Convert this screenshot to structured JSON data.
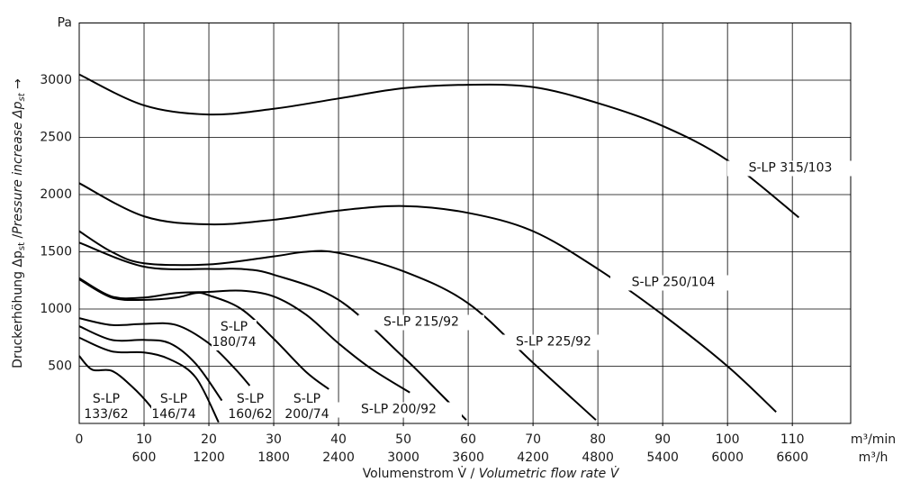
{
  "chart_data": {
    "type": "line",
    "ylabel": [
      "Druckerhöhung Δp",
      "st",
      " /",
      "Pressure increase Δp",
      "st",
      " →"
    ],
    "xlabel": [
      "Volumenstrom V̇ / ",
      "Volumetric flow rate V̇"
    ],
    "x_unit": "m³/min",
    "x2_unit": "m³/h",
    "xlim": [
      0,
      119
    ],
    "xticks": [
      0,
      10,
      20,
      30,
      40,
      50,
      60,
      70,
      80,
      90,
      100,
      110
    ],
    "x2lim": [
      0,
      7140
    ],
    "x2ticks": [
      600,
      1200,
      1800,
      2400,
      3000,
      3600,
      4200,
      4800,
      5400,
      6000,
      6600
    ],
    "ylim": [
      0,
      3500
    ],
    "yticks": [
      500,
      1000,
      1500,
      2000,
      2500,
      3000,
      {
        "value": 3500,
        "label": "Pa"
      }
    ],
    "grid": true,
    "color": "#000000",
    "series": [
      {
        "name": "S-LP 315/103",
        "x": [
          0,
          10,
          20,
          30,
          40,
          50,
          60,
          70,
          80,
          90,
          100,
          111
        ],
        "values": [
          3050,
          2780,
          2700,
          2750,
          2840,
          2930,
          2960,
          2940,
          2800,
          2600,
          2300,
          1800
        ]
      },
      {
        "name": "S-LP 250/104",
        "x": [
          0,
          10,
          20,
          30,
          40,
          50,
          60,
          70,
          80,
          90,
          100,
          107.5
        ],
        "values": [
          2100,
          1810,
          1740,
          1780,
          1860,
          1900,
          1840,
          1680,
          1350,
          950,
          500,
          100
        ]
      },
      {
        "name": "S-LP 225/92",
        "x": [
          0,
          5,
          10,
          20,
          30,
          35,
          40,
          50,
          60,
          70,
          79.7
        ],
        "values": [
          1680,
          1500,
          1400,
          1390,
          1460,
          1500,
          1490,
          1330,
          1050,
          530,
          30
        ]
      },
      {
        "name": "S-LP 215/92",
        "x": [
          0,
          10,
          20,
          25,
          30,
          40,
          50,
          55,
          59.7
        ],
        "values": [
          1580,
          1370,
          1350,
          1350,
          1300,
          1080,
          580,
          300,
          30
        ]
      },
      {
        "name": "S-LP 200/92",
        "x": [
          0,
          5,
          10,
          15,
          20,
          25,
          30,
          35,
          40,
          45,
          51
        ],
        "values": [
          1270,
          1110,
          1100,
          1140,
          1150,
          1160,
          1110,
          950,
          700,
          480,
          270
        ]
      },
      {
        "name": "S-LP 200/74",
        "x": [
          0,
          5,
          10,
          15,
          18,
          20,
          25,
          30,
          35,
          38.5
        ],
        "values": [
          1260,
          1100,
          1080,
          1100,
          1140,
          1120,
          1000,
          740,
          450,
          300
        ]
      },
      {
        "name": "S-LP 180/74",
        "x": [
          0,
          5,
          10,
          15,
          20,
          24,
          26.3
        ],
        "values": [
          920,
          860,
          870,
          860,
          700,
          480,
          330
        ]
      },
      {
        "name": "S-LP 160/62",
        "x": [
          0,
          5,
          10,
          14,
          18,
          22
        ],
        "values": [
          850,
          730,
          730,
          700,
          520,
          200
        ]
      },
      {
        "name": "S-LP 146/74",
        "x": [
          0,
          5,
          10,
          14,
          18,
          21.5
        ],
        "values": [
          750,
          630,
          620,
          560,
          400,
          10
        ]
      },
      {
        "name": "S-LP 133/62",
        "x": [
          0,
          2,
          5,
          8,
          11,
          12.5
        ],
        "values": [
          590,
          470,
          460,
          330,
          150,
          15
        ]
      }
    ]
  }
}
